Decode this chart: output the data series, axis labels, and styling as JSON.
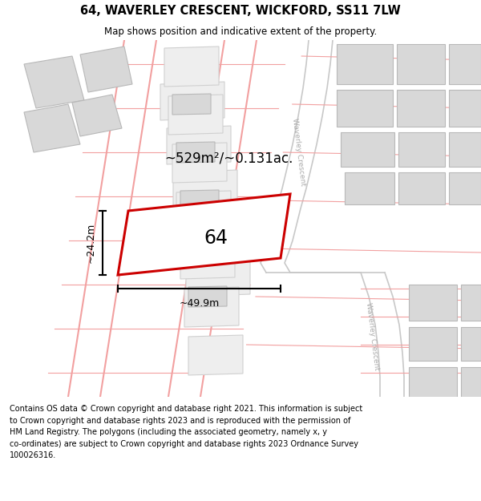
{
  "title": "64, WAVERLEY CRESCENT, WICKFORD, SS11 7LW",
  "subtitle": "Map shows position and indicative extent of the property.",
  "footer": "Contains OS data © Crown copyright and database right 2021. This information is subject\nto Crown copyright and database rights 2023 and is reproduced with the permission of\nHM Land Registry. The polygons (including the associated geometry, namely x, y\nco-ordinates) are subject to Crown copyright and database rights 2023 Ordnance Survey\n100026316.",
  "bg_color": "#ffffff",
  "plot_fill": "#ffffff",
  "plot_edge": "#cc0000",
  "road_pink": "#f2a0a0",
  "road_gray": "#c8c8c8",
  "building_fill": "#d8d8d8",
  "building_edge": "#b8b8b8",
  "lot_fill": "#eeeeee",
  "lot_edge": "#d0d0d0",
  "area_text": "~529m²/~0.131ac.",
  "width_text": "~49.9m",
  "height_text": "~24.2m",
  "number_text": "64",
  "road_label1": "Waverley Crescent",
  "road_label2": "Waverley Crescent",
  "dim_color": "#000000"
}
